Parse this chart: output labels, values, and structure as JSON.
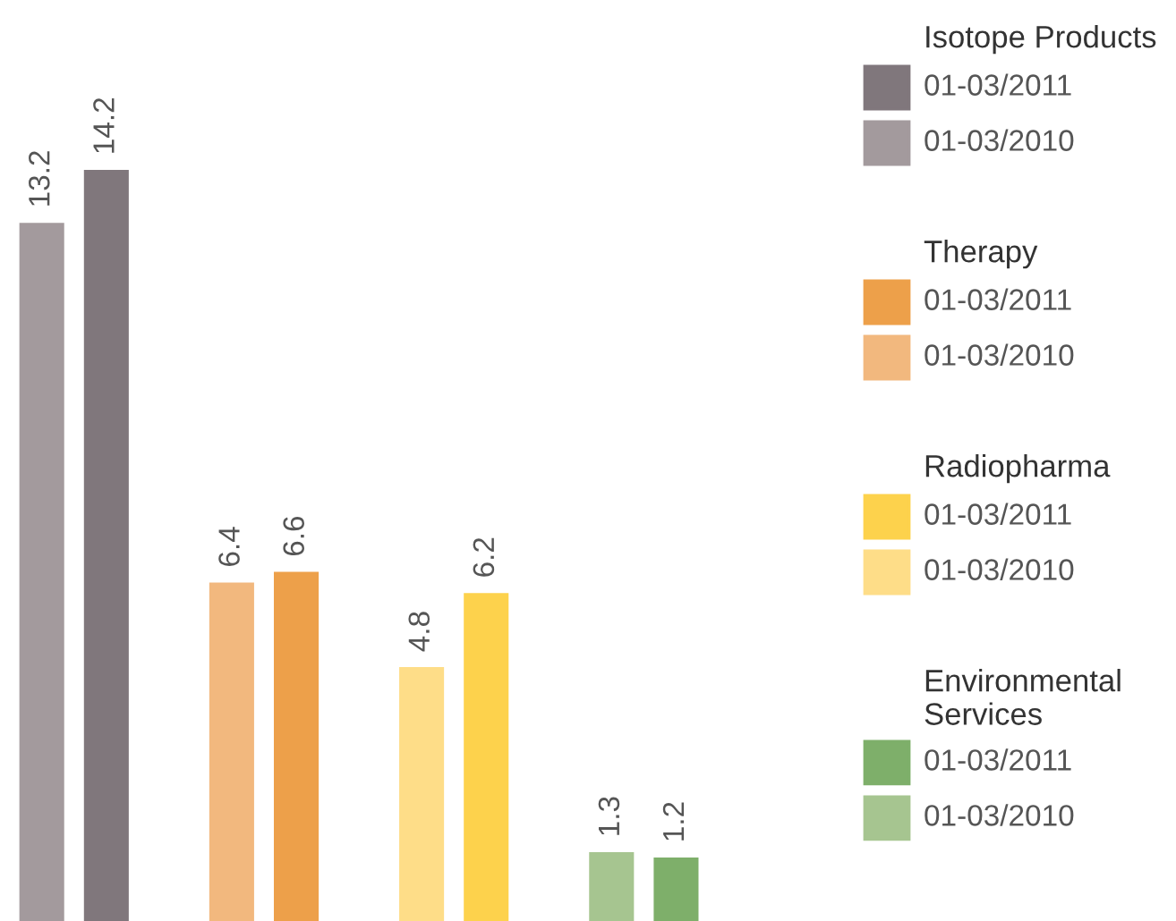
{
  "chart_data": {
    "type": "bar",
    "categories": [
      null,
      null,
      null,
      null
    ],
    "annotations": [
      "Isotope Products",
      "Therapy",
      "Radiopharma",
      "Environmental Services"
    ],
    "series": [
      {
        "name": "01-03/2010",
        "colors": [
          "#a39a9d",
          "#f2b87e",
          "#fedd88",
          "#a6c590"
        ],
        "values": [
          13.2,
          6.4,
          4.8,
          1.3
        ]
      },
      {
        "name": "01-03/2011",
        "colors": [
          "#80777c",
          "#eda04a",
          "#fdd24c",
          "#7eaf6a"
        ],
        "values": [
          14.2,
          6.6,
          6.2,
          1.2
        ]
      }
    ],
    "data_labels": true,
    "legend": "right"
  }
}
